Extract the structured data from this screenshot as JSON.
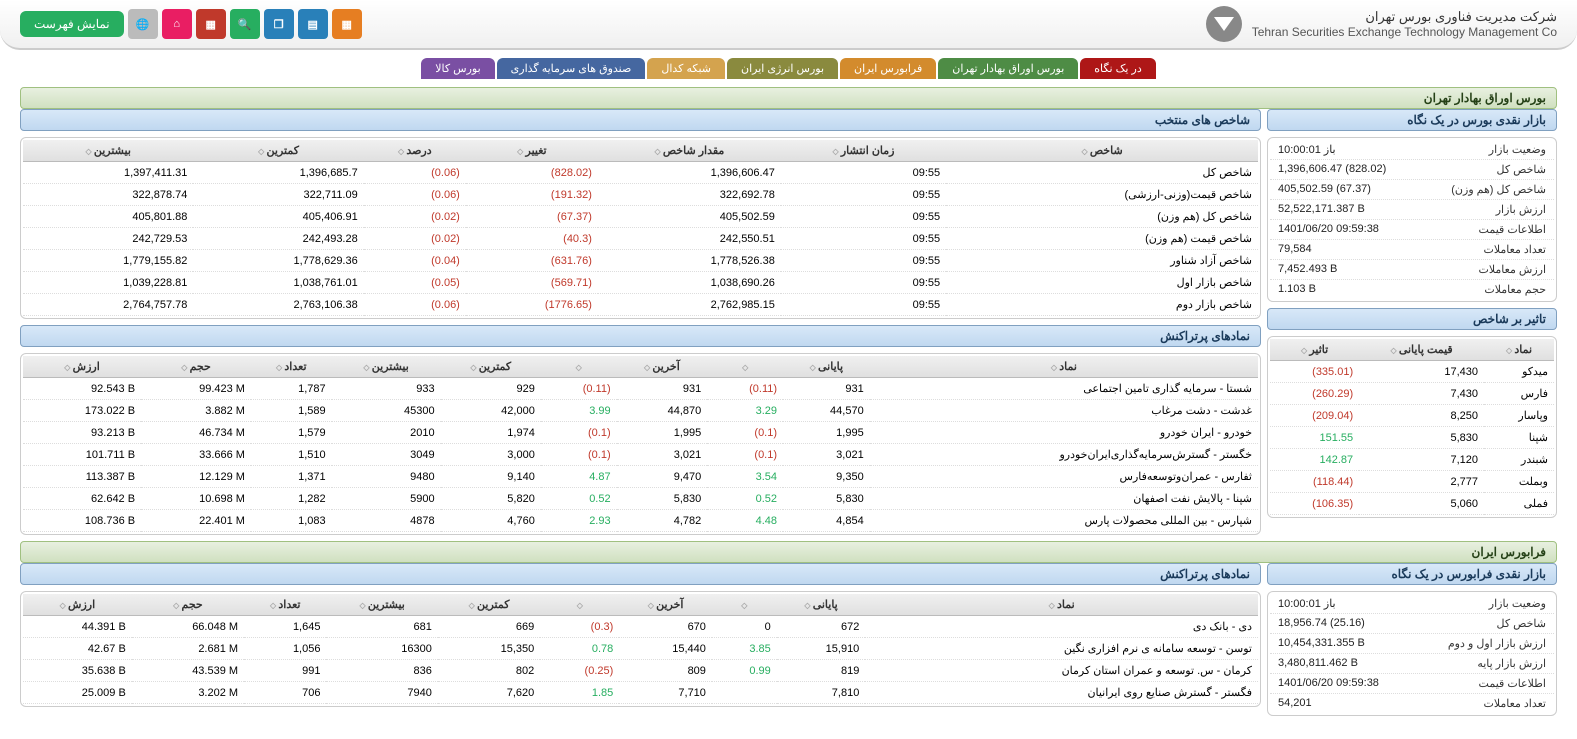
{
  "header": {
    "company_fa": "شرکت مدیریت فناوری بورس تهران",
    "company_en": "Tehran Securities Exchange Technology Management Co",
    "list_button": "نمایش فهرست"
  },
  "tabs": {
    "glance": "در یک نگاه",
    "tse": "بورس اوراق بهادار تهران",
    "farabourse": "فرابورس ایران",
    "energy": "بورس انرژی ایران",
    "codal": "شبکه کدال",
    "funds": "صندوق های سرمایه گذاری",
    "commodity": "بورس کالا"
  },
  "tse_title": "بورس اوراق بهادار تهران",
  "cash_market": {
    "title": "بازار نقدی بورس در یک نگاه",
    "rows": [
      {
        "k": "وضعیت بازار",
        "v": "باز 10:00:01",
        "cls": ""
      },
      {
        "k": "شاخص کل",
        "v": "1,396,606.47 (828.02)",
        "cls": "neg"
      },
      {
        "k": "شاخص كل (هم وزن)",
        "v": "405,502.59 (67.37)",
        "cls": "neg"
      },
      {
        "k": "ارزش بازار",
        "v": "52,522,171.387 B",
        "cls": ""
      },
      {
        "k": "اطلاعات قیمت",
        "v": "1401/06/20 09:59:38",
        "cls": ""
      },
      {
        "k": "تعداد معاملات",
        "v": "79,584",
        "cls": ""
      },
      {
        "k": "ارزش معاملات",
        "v": "7,452.493 B",
        "cls": ""
      },
      {
        "k": "حجم معاملات",
        "v": "1.103 B",
        "cls": ""
      }
    ]
  },
  "selected_indices": {
    "title": "شاخص های منتخب",
    "cols": [
      "شاخص",
      "زمان انتشار",
      "مقدار شاخص",
      "تغییر",
      "درصد",
      "کمترین",
      "بیشترین"
    ],
    "rows": [
      {
        "name": "شاخص کل",
        "time": "09:55",
        "val": "1,396,606.47",
        "chg": "(828.02)",
        "pct": "(0.06)",
        "low": "1,396,685.7",
        "high": "1,397,411.31",
        "cls": "neg"
      },
      {
        "name": "شاخص قیمت(وزنی-ارزشی)",
        "time": "09:55",
        "val": "322,692.78",
        "chg": "(191.32)",
        "pct": "(0.06)",
        "low": "322,711.09",
        "high": "322,878.74",
        "cls": "neg"
      },
      {
        "name": "شاخص كل (هم وزن)",
        "time": "09:55",
        "val": "405,502.59",
        "chg": "(67.37)",
        "pct": "(0.02)",
        "low": "405,406.91",
        "high": "405,801.88",
        "cls": "neg"
      },
      {
        "name": "شاخص قیمت (هم وزن)",
        "time": "09:55",
        "val": "242,550.51",
        "chg": "(40.3)",
        "pct": "(0.02)",
        "low": "242,493.28",
        "high": "242,729.53",
        "cls": "neg"
      },
      {
        "name": "شاخص آزاد شناور",
        "time": "09:55",
        "val": "1,778,526.38",
        "chg": "(631.76)",
        "pct": "(0.04)",
        "low": "1,778,629.36",
        "high": "1,779,155.82",
        "cls": "neg"
      },
      {
        "name": "شاخص بازار اول",
        "time": "09:55",
        "val": "1,038,690.26",
        "chg": "(569.71)",
        "pct": "(0.05)",
        "low": "1,038,761.01",
        "high": "1,039,228.81",
        "cls": "neg"
      },
      {
        "name": "شاخص بازار دوم",
        "time": "09:55",
        "val": "2,762,985.15",
        "chg": "(1776.65)",
        "pct": "(0.06)",
        "low": "2,763,106.38",
        "high": "2,764,757.78",
        "cls": "neg"
      }
    ]
  },
  "index_effect": {
    "title": "تاثیر بر شاخص",
    "cols": [
      "نماد",
      "قیمت پایانی",
      "تاثیر"
    ],
    "rows": [
      {
        "sym": "میدکو",
        "price": "17,430",
        "eff": "(335.01)",
        "cls": "neg"
      },
      {
        "sym": "فارس",
        "price": "7,430",
        "eff": "(260.29)",
        "cls": "neg"
      },
      {
        "sym": "وپاسار",
        "price": "8,250",
        "eff": "(209.04)",
        "cls": "neg"
      },
      {
        "sym": "شپنا",
        "price": "5,830",
        "eff": "151.55",
        "cls": "pos"
      },
      {
        "sym": "شبندر",
        "price": "7,120",
        "eff": "142.87",
        "cls": "pos"
      },
      {
        "sym": "وبملت",
        "price": "2,777",
        "eff": "(118.44)",
        "cls": "neg"
      },
      {
        "sym": "فملی",
        "price": "5,060",
        "eff": "(106.35)",
        "cls": "neg"
      }
    ]
  },
  "top_symbols": {
    "title": "نمادهای پرتراکنش",
    "cols": [
      "نماد",
      "پایانی",
      "",
      "آخرین",
      "",
      "کمترین",
      "بیشترین",
      "تعداد",
      "حجم",
      "ارزش"
    ],
    "rows": [
      {
        "sym": "شستا - سرمایه گذاری تامین اجتماعی",
        "close": "931",
        "cpct": "(0.11)",
        "last": "931",
        "lpct": "(0.11)",
        "low": "929",
        "high": "933",
        "cnt": "1,787",
        "vol": "99.423 M",
        "val": "92.543 B",
        "ccls": "neg",
        "lcls": "neg"
      },
      {
        "sym": "غدشت - دشت مرغاب",
        "close": "44,570",
        "cpct": "3.29",
        "last": "44,870",
        "lpct": "3.99",
        "low": "42,000",
        "high": "45300",
        "cnt": "1,589",
        "vol": "3.882 M",
        "val": "173.022 B",
        "ccls": "pos",
        "lcls": "pos"
      },
      {
        "sym": "خودرو - ایران خودرو",
        "close": "1,995",
        "cpct": "(0.1)",
        "last": "1,995",
        "lpct": "(0.1)",
        "low": "1,974",
        "high": "2010",
        "cnt": "1,579",
        "vol": "46.734 M",
        "val": "93.213 B",
        "ccls": "neg",
        "lcls": "neg"
      },
      {
        "sym": "خگستر - گسترش‌سرمایه‌گذاری‌ایران‌خودرو",
        "close": "3,021",
        "cpct": "(0.1)",
        "last": "3,021",
        "lpct": "(0.1)",
        "low": "3,000",
        "high": "3049",
        "cnt": "1,510",
        "vol": "33.666 M",
        "val": "101.711 B",
        "ccls": "neg",
        "lcls": "neg"
      },
      {
        "sym": "ثفارس - عمران‌وتوسعه‌فارس",
        "close": "9,350",
        "cpct": "3.54",
        "last": "9,470",
        "lpct": "4.87",
        "low": "9,140",
        "high": "9480",
        "cnt": "1,371",
        "vol": "12.129 M",
        "val": "113.387 B",
        "ccls": "pos",
        "lcls": "pos"
      },
      {
        "sym": "شپنا - پالایش نفت اصفهان",
        "close": "5,830",
        "cpct": "0.52",
        "last": "5,830",
        "lpct": "0.52",
        "low": "5,820",
        "high": "5900",
        "cnt": "1,282",
        "vol": "10.698 M",
        "val": "62.642 B",
        "ccls": "pos",
        "lcls": "pos"
      },
      {
        "sym": "شپارس - بین المللی محصولات پارس",
        "close": "4,854",
        "cpct": "4.48",
        "last": "4,782",
        "lpct": "2.93",
        "low": "4,760",
        "high": "4878",
        "cnt": "1,083",
        "vol": "22.401 M",
        "val": "108.736 B",
        "ccls": "pos",
        "lcls": "pos"
      }
    ]
  },
  "farabourse_title": "فرابورس ایران",
  "fb_cash": {
    "title": "بازار نقدی فرابورس در یک نگاه",
    "rows": [
      {
        "k": "وضعیت بازار",
        "v": "باز 10:00:01",
        "cls": ""
      },
      {
        "k": "شاخص کل",
        "v": "18,956.74 (25.16)",
        "cls": "neg"
      },
      {
        "k": "ارزش بازار اول و دوم",
        "v": "10,454,331.355 B",
        "cls": ""
      },
      {
        "k": "ارزش بازار پایه",
        "v": "3,480,811.462 B",
        "cls": ""
      },
      {
        "k": "اطلاعات قیمت",
        "v": "1401/06/20 09:59:38",
        "cls": ""
      },
      {
        "k": "تعداد معاملات",
        "v": "54,201",
        "cls": ""
      }
    ]
  },
  "fb_top": {
    "title": "نمادهای پرتراکنش",
    "cols": [
      "نماد",
      "پایانی",
      "",
      "آخرین",
      "",
      "کمترین",
      "بیشترین",
      "تعداد",
      "حجم",
      "ارزش"
    ],
    "rows": [
      {
        "sym": "دی - بانک دی",
        "close": "672",
        "cpct": "0",
        "last": "670",
        "lpct": "(0.3)",
        "low": "669",
        "high": "681",
        "cnt": "1,645",
        "vol": "66.048 M",
        "val": "44.391 B",
        "ccls": "",
        "lcls": "neg"
      },
      {
        "sym": "توسن - توسعه سامانه ی نرم افزاری نگین",
        "close": "15,910",
        "cpct": "3.85",
        "last": "15,440",
        "lpct": "0.78",
        "low": "15,350",
        "high": "16300",
        "cnt": "1,056",
        "vol": "2.681 M",
        "val": "42.67 B",
        "ccls": "pos",
        "lcls": "pos"
      },
      {
        "sym": "کرمان - س. توسعه و عمران استان کرمان",
        "close": "819",
        "cpct": "0.99",
        "last": "809",
        "lpct": "(0.25)",
        "low": "802",
        "high": "836",
        "cnt": "991",
        "vol": "43.539 M",
        "val": "35.638 B",
        "ccls": "pos",
        "lcls": "neg"
      },
      {
        "sym": "فگستر - گسترش صنایع روی ایرانیان",
        "close": "7,810",
        "cpct": "",
        "last": "7,710",
        "lpct": "1.85",
        "low": "7,620",
        "high": "7940",
        "cnt": "706",
        "vol": "3.202 M",
        "val": "25.009 B",
        "ccls": "",
        "lcls": "pos"
      }
    ]
  }
}
